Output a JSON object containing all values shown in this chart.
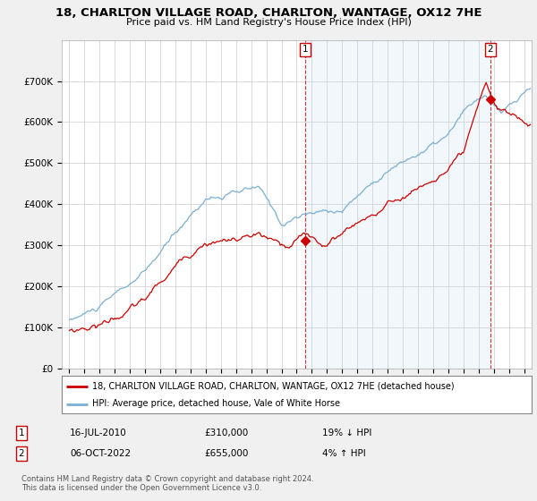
{
  "title": "18, CHARLTON VILLAGE ROAD, CHARLTON, WANTAGE, OX12 7HE",
  "subtitle": "Price paid vs. HM Land Registry's House Price Index (HPI)",
  "legend_line1": "18, CHARLTON VILLAGE ROAD, CHARLTON, WANTAGE, OX12 7HE (detached house)",
  "legend_line2": "HPI: Average price, detached house, Vale of White Horse",
  "annotation1_label": "1",
  "annotation1_date": "16-JUL-2010",
  "annotation1_price": "£310,000",
  "annotation1_hpi": "19% ↓ HPI",
  "annotation2_label": "2",
  "annotation2_date": "06-OCT-2022",
  "annotation2_price": "£655,000",
  "annotation2_hpi": "4% ↑ HPI",
  "footer": "Contains HM Land Registry data © Crown copyright and database right 2024.\nThis data is licensed under the Open Government Licence v3.0.",
  "hpi_color": "#7bafd4",
  "price_color": "#cc0000",
  "annotation_color": "#cc0000",
  "shade_color": "#ddeeff",
  "ylim": [
    0,
    800000
  ],
  "yticks": [
    0,
    100000,
    200000,
    300000,
    400000,
    500000,
    600000,
    700000
  ],
  "ytick_labels": [
    "£0",
    "£100K",
    "£200K",
    "£300K",
    "£400K",
    "£500K",
    "£600K",
    "£700K"
  ],
  "bg_color": "#f0f0f0",
  "plot_bg_color": "#ffffff",
  "grid_color": "#cccccc",
  "sale1_x": 2010.54,
  "sale1_y": 310000,
  "sale2_x": 2022.76,
  "sale2_y": 655000,
  "xmin": 1995,
  "xmax": 2025.5
}
